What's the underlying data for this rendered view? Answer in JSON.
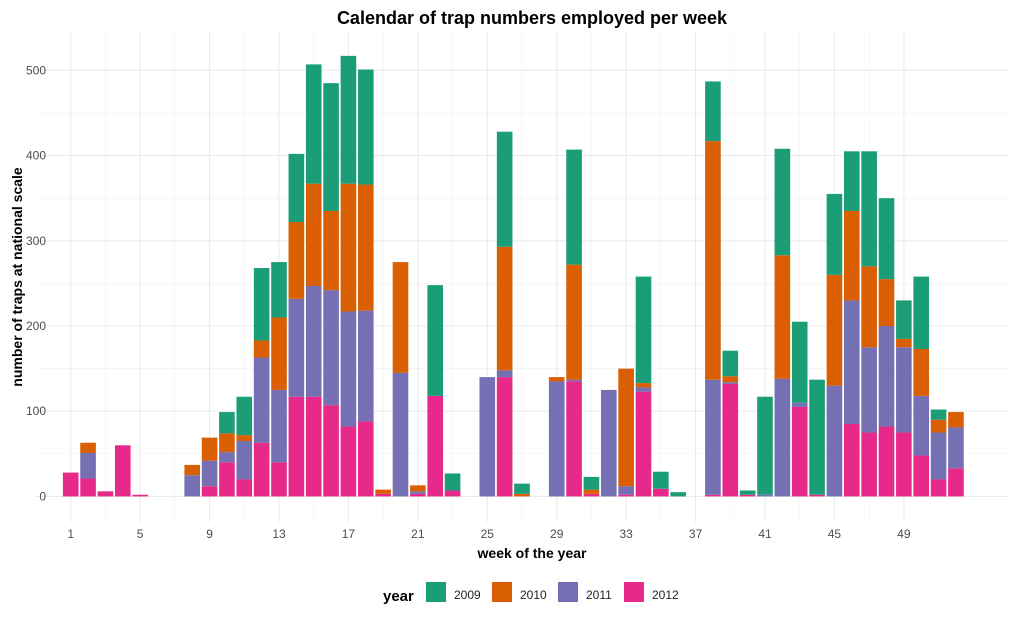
{
  "chart_data": {
    "type": "bar",
    "stacked": true,
    "title": "Calendar of trap numbers employed per week",
    "xlabel": "week of the year",
    "ylabel": "number of traps at national scale",
    "xlim": [
      -1,
      55
    ],
    "ylim": [
      -30,
      545
    ],
    "x_ticks": [
      "1",
      "5",
      "9",
      "13",
      "17",
      "21",
      "25",
      "29",
      "33",
      "37",
      "41",
      "45",
      "49"
    ],
    "y_ticks": [
      0,
      100,
      200,
      300,
      400,
      500
    ],
    "grid": true,
    "legend": {
      "title": "year",
      "position": "bottom"
    },
    "stack_order": [
      "2012",
      "2011",
      "2010",
      "2009"
    ],
    "series": [
      {
        "name": "2009",
        "color": "#1b9e77",
        "values": {
          "10": 25,
          "11": 45,
          "12": 85,
          "13": 65,
          "14": 80,
          "15": 140,
          "16": 150,
          "17": 150,
          "18": 135,
          "22": 130,
          "23": 20,
          "26": 135,
          "27": 12,
          "30": 135,
          "31": 15,
          "34": 125,
          "35": 20,
          "36": 5,
          "38": 70,
          "39": 30,
          "40": 5,
          "41": 115,
          "42": 125,
          "43": 95,
          "44": 135,
          "45": 95,
          "46": 70,
          "47": 135,
          "48": 95,
          "49": 45,
          "50": 85,
          "51": 12
        }
      },
      {
        "name": "2010",
        "color": "#d95f02",
        "values": {
          "2": 12,
          "8": 12,
          "9": 27,
          "10": 22,
          "11": 7,
          "12": 20,
          "13": 85,
          "14": 90,
          "15": 120,
          "16": 93,
          "17": 150,
          "18": 148,
          "19": 5,
          "20": 130,
          "21": 7,
          "26": 145,
          "27": 3,
          "29": 5,
          "30": 135,
          "31": 5,
          "33": 138,
          "34": 5,
          "38": 280,
          "39": 7,
          "42": 145,
          "45": 130,
          "46": 105,
          "47": 95,
          "48": 55,
          "49": 10,
          "50": 55,
          "51": 15,
          "52": 18
        }
      },
      {
        "name": "2011",
        "color": "#7570b3",
        "values": {
          "2": 30,
          "8": 25,
          "9": 30,
          "10": 12,
          "11": 45,
          "12": 100,
          "13": 85,
          "14": 115,
          "15": 130,
          "16": 135,
          "17": 135,
          "18": 130,
          "20": 145,
          "21": 3,
          "25": 140,
          "26": 8,
          "29": 135,
          "30": 2,
          "32": 125,
          "33": 10,
          "34": 5,
          "38": 135,
          "39": 2,
          "41": 2,
          "42": 138,
          "43": 5,
          "45": 130,
          "46": 145,
          "47": 100,
          "48": 118,
          "49": 100,
          "50": 70,
          "51": 55,
          "52": 48
        }
      },
      {
        "name": "2012",
        "color": "#e7298a",
        "values": {
          "1": 28,
          "2": 21,
          "3": 6,
          "4": 60,
          "5": 2,
          "9": 12,
          "10": 40,
          "11": 20,
          "12": 63,
          "13": 40,
          "14": 117,
          "15": 117,
          "16": 107,
          "17": 82,
          "18": 88,
          "19": 3,
          "21": 3,
          "22": 118,
          "23": 7,
          "26": 140,
          "30": 135,
          "31": 3,
          "33": 2,
          "34": 123,
          "35": 9,
          "38": 2,
          "39": 132,
          "40": 2,
          "43": 105,
          "44": 2,
          "46": 85,
          "47": 75,
          "48": 82,
          "49": 75,
          "50": 48,
          "51": 20,
          "52": 33
        }
      }
    ]
  }
}
